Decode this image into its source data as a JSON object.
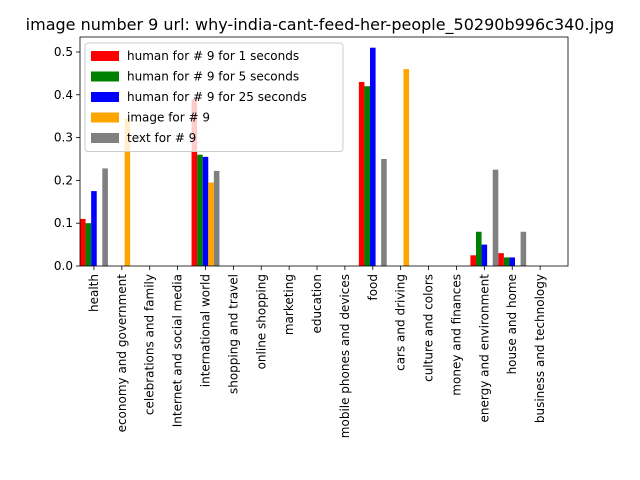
{
  "chart_data": {
    "type": "bar",
    "title": "image number 9 url: why-india-cant-feed-her-people_50290b996c340.jpg",
    "xlabel": "",
    "ylabel": "",
    "ylim": [
      0,
      0.535
    ],
    "yticks": [
      "0.0",
      "0.1",
      "0.2",
      "0.3",
      "0.4",
      "0.5"
    ],
    "legend_position": "upper-left",
    "categories": [
      "health",
      "economy and government",
      "celebrations and family",
      "Internet and social media",
      "international world",
      "shopping and travel",
      "online shopping",
      "marketing",
      "education",
      "mobile phones and devices",
      "food",
      "cars and driving",
      "culture and colors",
      "money and finances",
      "energy and environment",
      "house and home",
      "business and technology"
    ],
    "series": [
      {
        "name": "human for # 9 for 1 seconds",
        "color": "#ff0000",
        "values": [
          0.11,
          null,
          0,
          0,
          0.39,
          0,
          0,
          0,
          0,
          0,
          0.43,
          null,
          0,
          0,
          0.025,
          0.03,
          null
        ]
      },
      {
        "name": "human for # 9 for 5 seconds",
        "color": "#008000",
        "values": [
          0.1,
          null,
          0,
          0,
          0.26,
          0,
          0,
          0,
          0,
          0,
          0.42,
          null,
          0,
          0,
          0.08,
          0.02,
          null
        ]
      },
      {
        "name": "human for # 9 for 25 seconds",
        "color": "#0000ff",
        "values": [
          0.175,
          null,
          0,
          0,
          0.255,
          0,
          0,
          0,
          0,
          0,
          0.51,
          null,
          0,
          0,
          0.05,
          0.02,
          null
        ]
      },
      {
        "name": "image for # 9",
        "color": "#ffa500",
        "values": [
          null,
          0.345,
          null,
          null,
          0.195,
          null,
          null,
          null,
          null,
          null,
          null,
          0.46,
          null,
          null,
          null,
          null,
          null
        ]
      },
      {
        "name": "text for # 9",
        "color": "#808080",
        "values": [
          0.228,
          null,
          0,
          0,
          0.222,
          0,
          0,
          0,
          0,
          0,
          0.25,
          null,
          0,
          0,
          0.225,
          0.08,
          null
        ]
      }
    ]
  }
}
